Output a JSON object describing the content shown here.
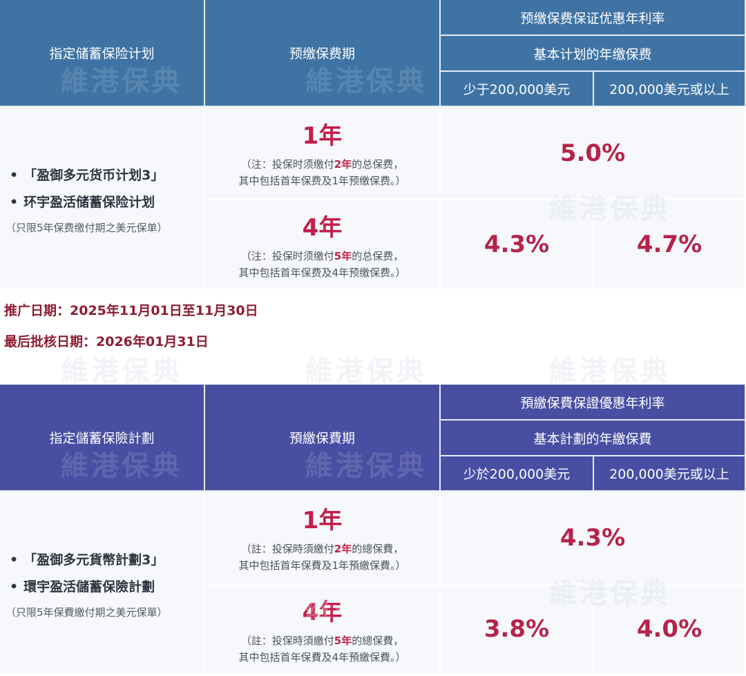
{
  "watermark": "維港保典",
  "tables": [
    {
      "header": {
        "plan": "指定储蓄保险计划",
        "period": "预缴保费期",
        "rate": "预缴保费保证优惠年利率",
        "basis": "基本计划的年缴保费",
        "tier1": "少于200,000美元",
        "tier2": "200,000美元或以上"
      },
      "plans": [
        "「盈御多元货币计划3」",
        "环宇盈活储蓄保险计划"
      ],
      "plan_note": "（只限5年保费缴付期之美元保单）",
      "rows": [
        {
          "period": "1年",
          "note_pre": "（注：投保时须缴付",
          "note_em": "2年",
          "note_post": "的总保费，",
          "note_line2": "其中包括首年保费及1年预缴保费。）",
          "rates": [
            "5.0%"
          ]
        },
        {
          "period": "4年",
          "note_pre": "（注：投保时须缴付",
          "note_em": "5年",
          "note_post": "的总保费，",
          "note_line2": "其中包括首年保费及4年预缴保费。）",
          "rates": [
            "4.3%",
            "4.7%"
          ]
        }
      ]
    },
    {
      "header": {
        "plan": "指定儲蓄保險計劃",
        "period": "預繳保費期",
        "rate": "預繳保費保證優惠年利率",
        "basis": "基本計劃的年繳保費",
        "tier1": "少於200,000美元",
        "tier2": "200,000美元或以上"
      },
      "plans": [
        "「盈御多元貨幣計劃3」",
        "環宇盈活儲蓄保險計劃"
      ],
      "plan_note": "（只限5年保費繳付期之美元保單）",
      "rows": [
        {
          "period": "1年",
          "note_pre": "（註：投保時須繳付",
          "note_em": "2年",
          "note_post": "的總保費，",
          "note_line2": "其中包括首年保費及1年預繳保費。）",
          "rates": [
            "4.3%"
          ]
        },
        {
          "period": "4年",
          "note_pre": "（註：投保時須繳付",
          "note_em": "5年",
          "note_post": "的總保費，",
          "note_line2": "其中包括首年保費及4年預繳保費。）",
          "rates": [
            "3.8%",
            "4.0%"
          ]
        }
      ]
    }
  ],
  "dates": [
    "推广日期：2025年11月01日至11月30日",
    "最后批核日期：2026年01月31日"
  ]
}
